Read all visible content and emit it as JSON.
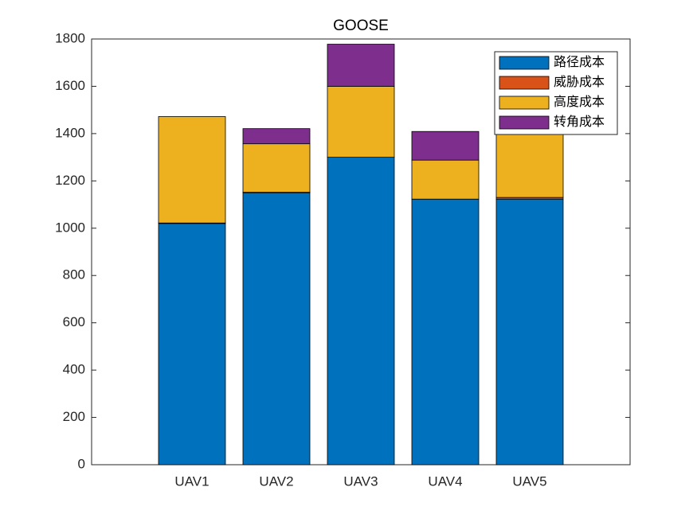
{
  "chart_data": {
    "type": "bar",
    "stacked": true,
    "title": "GOOSE",
    "categories": [
      "UAV1",
      "UAV2",
      "UAV3",
      "UAV4",
      "UAV5"
    ],
    "series": [
      {
        "name": "路径成本",
        "color": "#0072BD",
        "values": [
          1020,
          1150,
          1300,
          1123,
          1123
        ]
      },
      {
        "name": "威胁成本",
        "color": "#D95319",
        "values": [
          2,
          2,
          0,
          0,
          7
        ]
      },
      {
        "name": "高度成本",
        "color": "#EDB120",
        "values": [
          450,
          205,
          300,
          165,
          280
        ]
      },
      {
        "name": "转角成本",
        "color": "#7E2F8E",
        "values": [
          0,
          64,
          178,
          121,
          0
        ]
      }
    ],
    "ylim": [
      0,
      1800
    ],
    "yticks": [
      0,
      200,
      400,
      600,
      800,
      1000,
      1200,
      1400,
      1600,
      1800
    ],
    "legend": "upper right"
  }
}
